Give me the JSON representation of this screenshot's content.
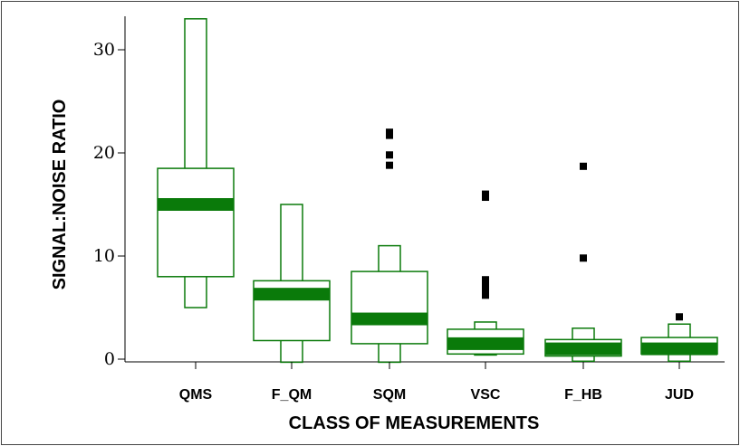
{
  "chart_data": {
    "type": "boxplot",
    "xlabel": "CLASS OF MEASUREMENTS",
    "ylabel": "SIGNAL:NOISE RATIO",
    "ylim": [
      0,
      33
    ],
    "yticks": [
      0,
      10,
      20,
      30
    ],
    "grid": false,
    "colors": {
      "box": "#0a7a0a",
      "median": "#0a7a0a",
      "outlier": "#000000"
    },
    "categories": [
      "QMS",
      "F_QM",
      "SQM",
      "VSC",
      "F_HB",
      "JUD"
    ],
    "boxes": [
      {
        "category": "QMS",
        "whisker_low": 5.0,
        "q1": 8.0,
        "median": 15.0,
        "q3": 18.5,
        "whisker_high": 33.0,
        "outliers": []
      },
      {
        "category": "F_QM",
        "whisker_low": -0.3,
        "q1": 1.8,
        "median": 6.3,
        "q3": 7.6,
        "whisker_high": 15.0,
        "outliers": []
      },
      {
        "category": "SQM",
        "whisker_low": -0.3,
        "q1": 1.5,
        "median": 3.9,
        "q3": 8.5,
        "whisker_high": 11.0,
        "outliers": [
          18.8,
          19.8,
          21.7,
          22.0
        ]
      },
      {
        "category": "VSC",
        "whisker_low": 0.4,
        "q1": 0.5,
        "median": 1.5,
        "q3": 2.9,
        "whisker_high": 3.6,
        "outliers": [
          6.2,
          6.6,
          7.1,
          7.7,
          15.7,
          16.0
        ]
      },
      {
        "category": "F_HB",
        "whisker_low": -0.2,
        "q1": 0.3,
        "median": 1.0,
        "q3": 1.9,
        "whisker_high": 3.0,
        "outliers": [
          9.8,
          18.7
        ]
      },
      {
        "category": "JUD",
        "whisker_low": -0.2,
        "q1": 0.5,
        "median": 1.0,
        "q3": 2.1,
        "whisker_high": 3.4,
        "outliers": [
          4.1
        ]
      }
    ]
  }
}
